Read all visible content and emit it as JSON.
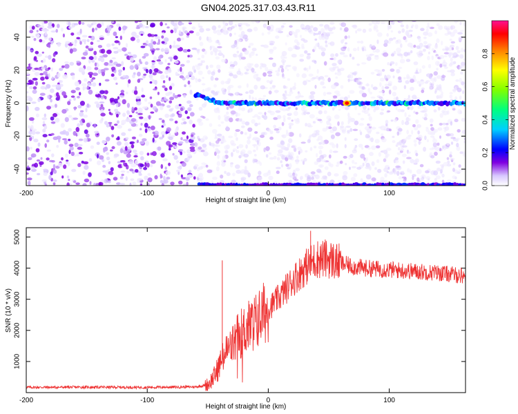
{
  "title": "GN04.2025.317.03.43.R11",
  "chart_data": [
    {
      "type": "heatmap",
      "name": "spectrogram",
      "xlabel": "Height of straight line (km)",
      "ylabel": "Frequency (Hz)",
      "xlim": [
        -200,
        163
      ],
      "ylim": [
        -50,
        50
      ],
      "xticks": [
        -200,
        -100,
        0,
        100
      ],
      "yticks": [
        -40,
        -20,
        0,
        20,
        40
      ],
      "colorbar": {
        "label": "Normalized spectral amplitude",
        "range": [
          0.0,
          1.0
        ],
        "ticks": [
          "0.0",
          "0.2",
          "0.4",
          "0.6",
          "0.8"
        ],
        "colors": [
          "#ffffff",
          "#c0a0ff",
          "#7a00e0",
          "#0000ff",
          "#00d0ff",
          "#00ff60",
          "#ffff00",
          "#ff8000",
          "#ff0000",
          "#ff1090"
        ]
      },
      "features": {
        "signal_band_freq_hz": 0,
        "signal_onset_km": -60,
        "peak_amplitude": 1.0,
        "peak_x_km": 65,
        "edge_band_freq_hz": -49,
        "noise_region_km": [
          -200,
          -60
        ]
      }
    },
    {
      "type": "line",
      "name": "snr",
      "xlabel": "Height of straight line (km)",
      "ylabel": "SNR (10 * v/v)",
      "xlim": [
        -200,
        163
      ],
      "ylim": [
        0,
        5300
      ],
      "xticks": [
        -200,
        -100,
        0,
        100
      ],
      "yticks": [
        1000,
        2000,
        3000,
        4000,
        5000
      ],
      "series": [
        {
          "name": "SNR",
          "color": "#ee3333",
          "x": [
            -200,
            -150,
            -100,
            -60,
            -50,
            -45,
            -40,
            -35,
            -30,
            -25,
            -20,
            -10,
            0,
            10,
            20,
            30,
            40,
            50,
            60,
            70,
            80,
            100,
            120,
            140,
            163
          ],
          "y": [
            170,
            175,
            170,
            185,
            250,
            500,
            900,
            1300,
            1500,
            1800,
            2000,
            2300,
            2700,
            3100,
            3600,
            4000,
            4300,
            4300,
            4150,
            4050,
            4000,
            3950,
            3900,
            3850,
            3750
          ]
        }
      ],
      "spikes": [
        {
          "x": -38,
          "y": 4250
        },
        {
          "x": 35,
          "y": 5200
        }
      ]
    }
  ]
}
